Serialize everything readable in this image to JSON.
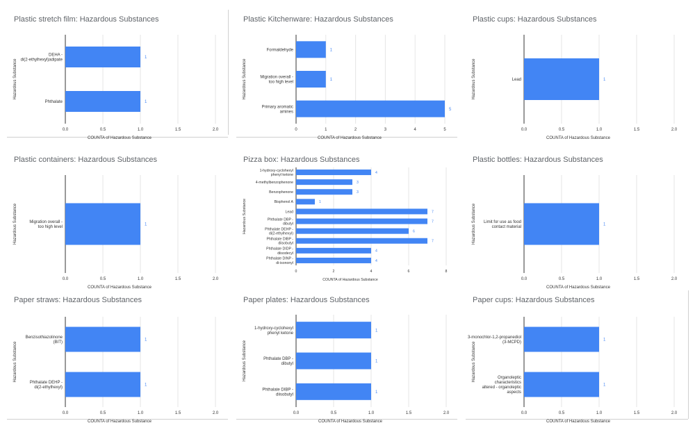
{
  "colors": {
    "bar": "#4285f4",
    "grid": "#e6e6e6",
    "axis": "#333333",
    "label": "#333333",
    "value": "#4285f4",
    "title": "#5f6368"
  },
  "chart_data": [
    {
      "type": "bar",
      "title": "Plastic stretch film: Hazardous Substances",
      "xlabel": "COUNTA of Hazardous Substance",
      "ylabel": "Hazardous Substance",
      "categories": [
        "DEHA - di(2-ethylhexyl)adipate",
        "Phthalate"
      ],
      "values": [
        1,
        1
      ],
      "xlim": [
        0,
        2
      ],
      "ticks": [
        "0.0",
        "0.5",
        "1.0",
        "1.5",
        "2.0"
      ],
      "tick_values": [
        0,
        0.5,
        1,
        1.5,
        2
      ]
    },
    {
      "type": "bar",
      "title": "Plastic Kitchenware: Hazardous Substances",
      "xlabel": "COUNTA of Hazardous Substance",
      "ylabel": "Hazardous Substance",
      "categories": [
        "Formaldehyde",
        "Migration overall - too high level",
        "Primary aromatic amines"
      ],
      "values": [
        1,
        1,
        5
      ],
      "xlim": [
        0,
        5
      ],
      "ticks": [
        "0",
        "1",
        "2",
        "3",
        "4",
        "5"
      ],
      "tick_values": [
        0,
        1,
        2,
        3,
        4,
        5
      ]
    },
    {
      "type": "bar",
      "title": "Plastic cups: Hazardous Substances",
      "xlabel": "COUNTA of Hazardous Substance",
      "ylabel": "Hazardous Substance",
      "categories": [
        "Lead"
      ],
      "values": [
        1
      ],
      "xlim": [
        0,
        2
      ],
      "ticks": [
        "0.0",
        "0.5",
        "1.0",
        "1.5",
        "2.0"
      ],
      "tick_values": [
        0,
        0.5,
        1,
        1.5,
        2
      ]
    },
    {
      "type": "bar",
      "title": "Plastic containers: Hazardous Substances",
      "xlabel": "COUNTA of Hazardous Substance",
      "ylabel": "Hazardous Substance",
      "categories": [
        "Migration overall - too high level"
      ],
      "values": [
        1
      ],
      "xlim": [
        0,
        2
      ],
      "ticks": [
        "0.0",
        "0.5",
        "1.0",
        "1.5",
        "2.0"
      ],
      "tick_values": [
        0,
        0.5,
        1,
        1.5,
        2
      ]
    },
    {
      "type": "bar",
      "title": "Pizza box: Hazardous Substances",
      "xlabel": "COUNTA of Hazardous Substance",
      "ylabel": "Hazardous Substance",
      "categories": [
        "1-hydroxy-cyclohexyl phenyl ketone",
        "4-methylbenzophenone",
        "Benzophenone",
        "Bisphenol A",
        "Lead",
        "Phthalate DBP - dibutyl",
        "Phthalate DEHP - di(2-ethylhexyl)",
        "Phthalate DIBP - diisobutyl",
        "Phthalate DIDP - diisodecyl",
        "Phthalate DINP - di-isononyl"
      ],
      "values": [
        4,
        3,
        3,
        1,
        7,
        7,
        6,
        7,
        4,
        4
      ],
      "xlim": [
        0,
        8
      ],
      "ticks": [
        "0",
        "2",
        "4",
        "6",
        "8"
      ],
      "tick_values": [
        0,
        2,
        4,
        6,
        8
      ]
    },
    {
      "type": "bar",
      "title": "Plastic bottles: Hazardous Substances",
      "xlabel": "COUNTA of Hazardous Substance",
      "ylabel": "Hazardous Substance",
      "categories": [
        "Limit for use as food contact material"
      ],
      "values": [
        1
      ],
      "xlim": [
        0,
        2
      ],
      "ticks": [
        "0.0",
        "0.5",
        "1.0",
        "1.5",
        "2.0"
      ],
      "tick_values": [
        0,
        0.5,
        1,
        1.5,
        2
      ]
    },
    {
      "type": "bar",
      "title": "Paper straws: Hazardous Substances",
      "xlabel": "COUNTA of Hazardous Substance",
      "ylabel": "Hazardous Substance",
      "categories": [
        "Benzisothiazolinone (BIT)",
        "Phthalate DEHP - di(2-ethylhexyl)"
      ],
      "values": [
        1,
        1
      ],
      "xlim": [
        0,
        2
      ],
      "ticks": [
        "0.0",
        "0.5",
        "1.0",
        "1.5",
        "2.0"
      ],
      "tick_values": [
        0,
        0.5,
        1,
        1.5,
        2
      ]
    },
    {
      "type": "bar",
      "title": "Paper plates: Hazardous Substances",
      "xlabel": "COUNTA of Hazardous Substance",
      "ylabel": "Hazardous Substance",
      "categories": [
        "1-hydroxy-cyclohexyl phenyl ketone",
        "Phthalate DBP - dibutyl",
        "Phthalate DIBP - diisobutyl"
      ],
      "values": [
        1,
        1,
        1
      ],
      "xlim": [
        0,
        2
      ],
      "ticks": [
        "0.0",
        "0.5",
        "1.0",
        "1.5",
        "2.0"
      ],
      "tick_values": [
        0,
        0.5,
        1,
        1.5,
        2
      ]
    },
    {
      "type": "bar",
      "title": "Paper cups: Hazardous Substances",
      "xlabel": "COUNTA of Hazardous Substance",
      "ylabel": "Hazardous Substance",
      "categories": [
        "3-monochlor-1,2-propanediol (3-MCPD)",
        "Organoleptic characteristics altered - organoleptic aspects"
      ],
      "values": [
        1,
        1
      ],
      "xlim": [
        0,
        2
      ],
      "ticks": [
        "0.0",
        "0.5",
        "1.0",
        "1.5",
        "2.0"
      ],
      "tick_values": [
        0,
        0.5,
        1,
        1.5,
        2
      ]
    }
  ]
}
